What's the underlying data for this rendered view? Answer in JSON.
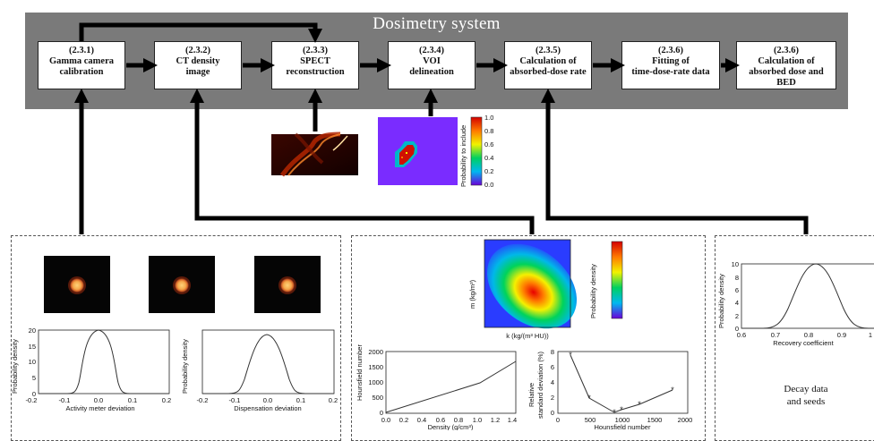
{
  "diagram": {
    "title": "Dosimetry system",
    "steps": [
      {
        "num": "(2.3.1)",
        "l1": "Gamma camera",
        "l2": "calibration",
        "l3": ""
      },
      {
        "num": "(2.3.2)",
        "l1": "CT density",
        "l2": "image",
        "l3": ""
      },
      {
        "num": "(2.3.3)",
        "l1": "SPECT",
        "l2": "reconstruction",
        "l3": ""
      },
      {
        "num": "(2.3.4)",
        "l1": "VOI",
        "l2": "delineation",
        "l3": ""
      },
      {
        "num": "(2.3.5)",
        "l1": "Calculation of",
        "l2": "absorbed-dose rate",
        "l3": ""
      },
      {
        "num": "(2.3.6)",
        "l1": "Fitting of",
        "l2": "time-dose-rate data",
        "l3": ""
      },
      {
        "num": "(2.3.6)",
        "l1": "Calculation of",
        "l2": "absorbed dose and",
        "l3": "BED"
      }
    ]
  },
  "voi_colorbar": {
    "label": "Probability to include",
    "ticks": [
      "1.0",
      "0.8",
      "0.6",
      "0.4",
      "0.2",
      "0.0"
    ]
  },
  "activity_plot": {
    "ylabel": "Probability density",
    "xlabel": "Activity meter deviation",
    "yticks": [
      "20",
      "15",
      "10",
      "5",
      "0"
    ],
    "xticks": [
      "-0.2",
      "-0.1",
      "0.0",
      "0.1",
      "0.2"
    ]
  },
  "dispensation_plot": {
    "ylabel": "Probability density",
    "xlabel": "Dispensation deviation",
    "xticks": [
      "-0.2",
      "-0.1",
      "0.0",
      "0.1",
      "0.2"
    ]
  },
  "heatmap": {
    "ylabel": "m (kg/m³)",
    "xlabel": "k (kg/(m³ HU))",
    "colorbar_label": "Probability density"
  },
  "hu_plot": {
    "ylabel": "Hounsfield number",
    "yticks": [
      "2000",
      "1500",
      "1000",
      "500",
      "0"
    ],
    "xticks": [
      "0.0",
      "0.2",
      "0.4",
      "0.6",
      "0.8",
      "1.0",
      "1.2",
      "1.4"
    ],
    "xlabel": "Density (g/cm³)"
  },
  "rsd_plot": {
    "ylabel_1": "Relative",
    "ylabel_2": "standard deviation (%)",
    "yticks": [
      "8",
      "6",
      "4",
      "2",
      "0"
    ],
    "xticks": [
      "0",
      "500",
      "1000",
      "1500",
      "2000"
    ],
    "xlabel": "Hounsfield number"
  },
  "recovery_plot": {
    "ylabel": "Probability density",
    "xlabel": "Recovery coefficient",
    "yticks": [
      "10",
      "8",
      "6",
      "4",
      "2",
      "0"
    ],
    "xticks": [
      "0.6",
      "0.7",
      "0.8",
      "0.9",
      "1"
    ]
  },
  "decay": {
    "line1": "Decay data",
    "line2": "and seeds"
  }
}
